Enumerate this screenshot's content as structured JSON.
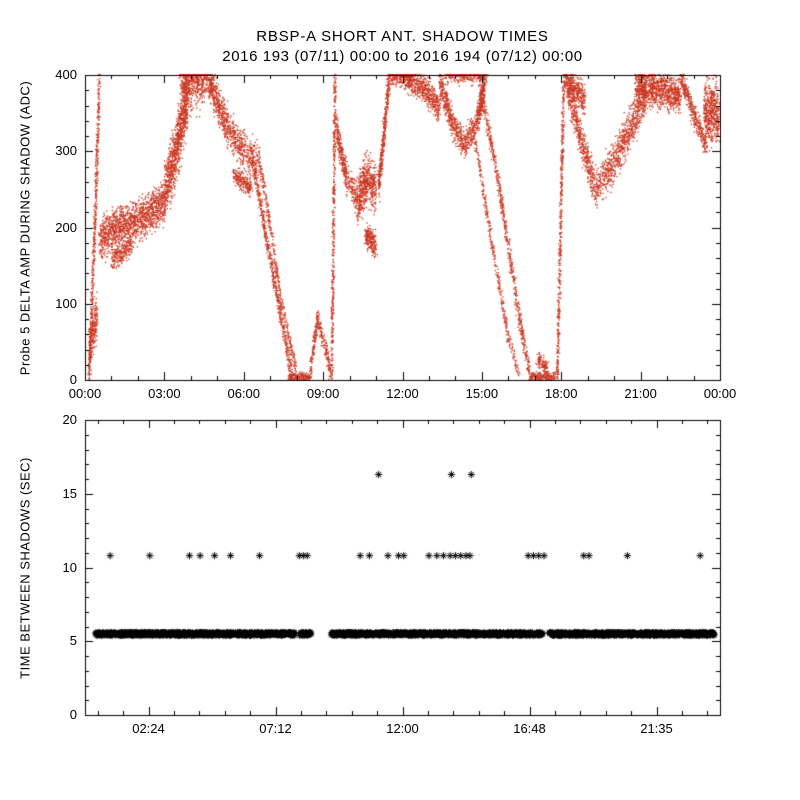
{
  "title": "RBSP-A SHORT ANT. SHADOW TIMES",
  "subtitle": "2016 193 (07/11) 00:00 to 2016 194 (07/12) 00:00",
  "colors": {
    "scatter_red": "#cc3822",
    "scatter_black": "#000000",
    "axis": "#000000",
    "background": "#ffffff"
  },
  "chart_data": [
    {
      "type": "scatter",
      "name": "probe5-delta-amp-during-shadow",
      "marker": "dot",
      "color_key": "scatter_red",
      "ylabel": "Probe 5 DELTA AMP DURING SHADOW (ADC)",
      "xlabel": "",
      "xlim_hours": [
        0,
        24
      ],
      "ylim": [
        0,
        400
      ],
      "grid": false,
      "xticks": {
        "hours": [
          0,
          3,
          6,
          9,
          12,
          15,
          18,
          21,
          24
        ],
        "labels": [
          "00:00",
          "03:00",
          "06:00",
          "09:00",
          "12:00",
          "15:00",
          "18:00",
          "21:00",
          "00:00"
        ],
        "minor_step": 1
      },
      "yticks": {
        "values": [
          0,
          100,
          200,
          300,
          400
        ],
        "labels": [
          "0",
          "100",
          "200",
          "300",
          "400"
        ],
        "minor_step": 20
      },
      "bands": [
        {
          "pts": [
            [
              0.15,
              5
            ],
            [
              0.35,
              180
            ],
            [
              0.55,
              400
            ]
          ],
          "hw": 22,
          "n": 500
        },
        {
          "pts": [
            [
              0.15,
              30
            ],
            [
              0.45,
              90
            ]
          ],
          "hw": 30,
          "n": 220
        },
        {
          "pts": [
            [
              0.55,
              185
            ],
            [
              1.2,
              200
            ],
            [
              2.2,
              210
            ],
            [
              3.0,
              235
            ]
          ],
          "hw": 26,
          "n": 1400
        },
        {
          "pts": [
            [
              1.0,
              155
            ],
            [
              1.8,
              180
            ]
          ],
          "hw": 14,
          "n": 220
        },
        {
          "pts": [
            [
              3.0,
              240
            ],
            [
              3.5,
              310
            ],
            [
              3.9,
              380
            ],
            [
              4.5,
              400
            ]
          ],
          "hw": 38,
          "n": 1200
        },
        {
          "pts": [
            [
              3.6,
              400
            ],
            [
              4.8,
              398
            ]
          ],
          "hw": 26,
          "n": 550
        },
        {
          "pts": [
            [
              4.7,
              390
            ],
            [
              5.4,
              330
            ],
            [
              6.0,
              300
            ],
            [
              6.6,
              286
            ]
          ],
          "hw": 24,
          "n": 800
        },
        {
          "pts": [
            [
              5.6,
              268
            ],
            [
              6.3,
              252
            ]
          ],
          "hw": 12,
          "n": 220
        },
        {
          "pts": [
            [
              6.3,
              295
            ],
            [
              7.1,
              140
            ],
            [
              7.8,
              10
            ]
          ],
          "hw": 13,
          "n": 550
        },
        {
          "pts": [
            [
              6.6,
              290
            ],
            [
              7.4,
              110
            ],
            [
              8.0,
              8
            ]
          ],
          "hw": 9,
          "n": 320
        },
        {
          "pts": [
            [
              7.7,
              4
            ],
            [
              8.5,
              4
            ]
          ],
          "hw": 6,
          "n": 200
        },
        {
          "pts": [
            [
              8.5,
              8
            ],
            [
              8.8,
              80
            ],
            [
              9.1,
              40
            ],
            [
              9.3,
              6
            ]
          ],
          "hw": 12,
          "n": 280
        },
        {
          "pts": [
            [
              9.33,
              5
            ],
            [
              9.45,
              400
            ]
          ],
          "hw": 9,
          "n": 420
        },
        {
          "pts": [
            [
              9.5,
              330
            ],
            [
              9.9,
              262
            ],
            [
              10.3,
              236
            ]
          ],
          "hw": 20,
          "n": 380
        },
        {
          "pts": [
            [
              10.3,
              236
            ],
            [
              10.7,
              266
            ],
            [
              11.0,
              252
            ]
          ],
          "hw": 30,
          "n": 550
        },
        {
          "pts": [
            [
              10.6,
              190
            ],
            [
              11.0,
              176
            ]
          ],
          "hw": 16,
          "n": 220
        },
        {
          "pts": [
            [
              11.1,
              252
            ],
            [
              11.35,
              340
            ],
            [
              11.5,
              400
            ]
          ],
          "hw": 18,
          "n": 380
        },
        {
          "pts": [
            [
              11.5,
              400
            ],
            [
              12.3,
              398
            ]
          ],
          "hw": 13,
          "n": 280
        },
        {
          "pts": [
            [
              12.1,
              398
            ],
            [
              12.9,
              380
            ],
            [
              13.4,
              356
            ]
          ],
          "hw": 18,
          "n": 550
        },
        {
          "pts": [
            [
              13.4,
              390
            ],
            [
              13.9,
              336
            ],
            [
              14.35,
              308
            ],
            [
              14.8,
              336
            ],
            [
              15.1,
              386
            ]
          ],
          "hw": 18,
          "n": 850
        },
        {
          "pts": [
            [
              13.6,
              400
            ],
            [
              14.6,
              400
            ],
            [
              15.2,
              398
            ]
          ],
          "hw": 11,
          "n": 320
        },
        {
          "pts": [
            [
              14.9,
              392
            ],
            [
              15.6,
              266
            ],
            [
              16.3,
              106
            ],
            [
              16.8,
              8
            ]
          ],
          "hw": 13,
          "n": 600
        },
        {
          "pts": [
            [
              14.7,
              322
            ],
            [
              15.3,
              196
            ],
            [
              16.0,
              56
            ],
            [
              16.4,
              6
            ]
          ],
          "hw": 9,
          "n": 330
        },
        {
          "pts": [
            [
              16.8,
              4
            ],
            [
              17.8,
              4
            ]
          ],
          "hw": 6,
          "n": 200
        },
        {
          "pts": [
            [
              17.1,
              28
            ],
            [
              17.5,
              14
            ]
          ],
          "hw": 11,
          "n": 110
        },
        {
          "pts": [
            [
              17.85,
              5
            ],
            [
              18.1,
              400
            ]
          ],
          "hw": 9,
          "n": 460
        },
        {
          "pts": [
            [
              18.15,
              398
            ],
            [
              18.7,
              320
            ],
            [
              19.3,
              250
            ]
          ],
          "hw": 22,
          "n": 550
        },
        {
          "pts": [
            [
              19.3,
              250
            ],
            [
              20.0,
              286
            ],
            [
              20.7,
              336
            ],
            [
              21.2,
              380
            ]
          ],
          "hw": 26,
          "n": 850
        },
        {
          "pts": [
            [
              18.3,
              392
            ],
            [
              18.9,
              366
            ]
          ],
          "hw": 18,
          "n": 280
        },
        {
          "pts": [
            [
              20.8,
              386
            ],
            [
              21.8,
              380
            ],
            [
              22.5,
              372
            ]
          ],
          "hw": 22,
          "n": 950
        },
        {
          "pts": [
            [
              22.5,
              398
            ],
            [
              23.1,
              340
            ],
            [
              23.5,
              306
            ]
          ],
          "hw": 15,
          "n": 380
        },
        {
          "pts": [
            [
              23.4,
              352
            ],
            [
              23.95,
              350
            ]
          ],
          "hw": 38,
          "n": 520
        }
      ]
    },
    {
      "type": "scatter",
      "name": "time-between-shadows",
      "marker": "asterisk",
      "color_key": "scatter_black",
      "ylabel": "TIME BETWEEN SHADOWS (SEC)",
      "xlabel": "",
      "xlim_hours": [
        0,
        24
      ],
      "ylim": [
        0,
        20
      ],
      "grid": false,
      "xticks": {
        "hours": [
          2.4,
          7.2,
          12.0,
          16.8,
          21.6
        ],
        "labels": [
          "02:24",
          "07:12",
          "12:00",
          "16:48",
          "21:35"
        ],
        "minor_step": 0.96
      },
      "yticks": {
        "values": [
          0,
          5,
          10,
          15,
          20
        ],
        "labels": [
          "0",
          "5",
          "10",
          "15",
          "20"
        ],
        "minor_step": 1
      },
      "dense_rows": [
        {
          "y": 5.5,
          "jitter": 0.12,
          "points_per_hour": 140,
          "segments": [
            [
              0.4,
              7.95
            ],
            [
              8.1,
              8.55
            ],
            [
              9.3,
              17.3
            ],
            [
              17.55,
              23.8
            ]
          ]
        }
      ],
      "point_rows": [
        {
          "y": 10.8,
          "hours": [
            0.95,
            2.45,
            3.95,
            4.35,
            4.9,
            5.5,
            6.6,
            8.1,
            8.25,
            8.4,
            10.4,
            10.75,
            11.45,
            11.85,
            12.05,
            13.0,
            13.3,
            13.55,
            13.8,
            14.0,
            14.2,
            14.4,
            14.55,
            16.75,
            16.95,
            17.15,
            17.35,
            18.85,
            19.05,
            20.5,
            23.25
          ]
        },
        {
          "y": 16.3,
          "hours": [
            11.1,
            13.85,
            14.6
          ]
        }
      ]
    }
  ]
}
